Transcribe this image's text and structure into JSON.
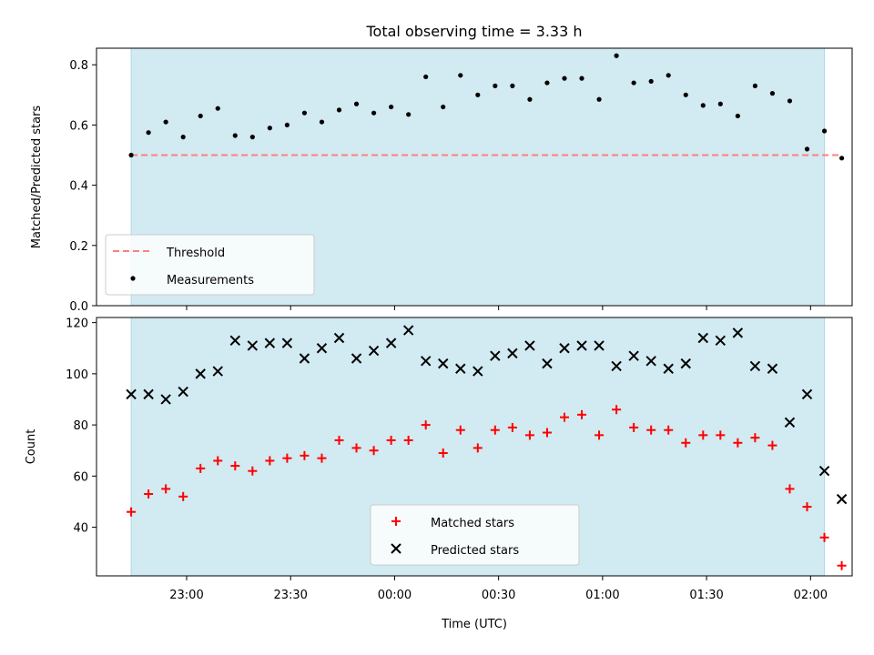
{
  "chart_data": [
    {
      "type": "scatter",
      "title": "Total observing time = 3.33 h",
      "ylabel": "Matched/Predicted stars",
      "xlabel": "",
      "ylim": [
        0,
        0.855
      ],
      "yticks": [
        "0.0",
        "0.2",
        "0.4",
        "0.6",
        "0.8"
      ],
      "threshold": {
        "name": "Threshold",
        "value": 0.5,
        "color": "#ff7f7f",
        "x_range": [
          "22:44",
          "02:09"
        ]
      },
      "observing_window": {
        "start": "22:44",
        "end": "02:04",
        "color": "#add8e6"
      },
      "legend_location": "lower-left",
      "series": [
        {
          "name": "Measurements",
          "color": "#000000",
          "marker": "dot",
          "x": [
            "22:44",
            "22:49",
            "22:54",
            "22:59",
            "23:04",
            "23:09",
            "23:14",
            "23:19",
            "23:24",
            "23:29",
            "23:34",
            "23:39",
            "23:44",
            "23:49",
            "23:54",
            "23:59",
            "00:04",
            "00:09",
            "00:14",
            "00:19",
            "00:24",
            "00:29",
            "00:34",
            "00:39",
            "00:44",
            "00:49",
            "00:54",
            "00:59",
            "01:04",
            "01:09",
            "01:14",
            "01:19",
            "01:24",
            "01:29",
            "01:34",
            "01:39",
            "01:44",
            "01:49",
            "01:54",
            "01:59",
            "02:04",
            "02:09"
          ],
          "y": [
            0.5,
            0.575,
            0.61,
            0.56,
            0.63,
            0.655,
            0.565,
            0.56,
            0.59,
            0.6,
            0.64,
            0.61,
            0.65,
            0.67,
            0.64,
            0.66,
            0.635,
            0.76,
            0.66,
            0.765,
            0.7,
            0.73,
            0.73,
            0.685,
            0.74,
            0.755,
            0.755,
            0.685,
            0.83,
            0.74,
            0.745,
            0.765,
            0.7,
            0.665,
            0.67,
            0.63,
            0.73,
            0.705,
            0.68,
            0.52,
            0.58,
            0.49
          ]
        }
      ]
    },
    {
      "type": "scatter",
      "title": "",
      "ylabel": "Count",
      "xlabel": "Time (UTC)",
      "ylim": [
        21,
        122
      ],
      "yticks": [
        "40",
        "60",
        "80",
        "100",
        "120"
      ],
      "xlim": [
        "22:34",
        "02:12"
      ],
      "xticks": [
        "23:00",
        "23:30",
        "00:00",
        "00:30",
        "01:00",
        "01:30",
        "02:00"
      ],
      "observing_window": {
        "start": "22:44",
        "end": "02:04",
        "color": "#add8e6"
      },
      "legend_location": "bottom-center",
      "series": [
        {
          "name": "Matched stars",
          "color": "#ff0000",
          "marker": "plus",
          "x": [
            "22:44",
            "22:49",
            "22:54",
            "22:59",
            "23:04",
            "23:09",
            "23:14",
            "23:19",
            "23:24",
            "23:29",
            "23:34",
            "23:39",
            "23:44",
            "23:49",
            "23:54",
            "23:59",
            "00:04",
            "00:09",
            "00:14",
            "00:19",
            "00:24",
            "00:29",
            "00:34",
            "00:39",
            "00:44",
            "00:49",
            "00:54",
            "00:59",
            "01:04",
            "01:09",
            "01:14",
            "01:19",
            "01:24",
            "01:29",
            "01:34",
            "01:39",
            "01:44",
            "01:49",
            "01:54",
            "01:59",
            "02:04",
            "02:09"
          ],
          "y": [
            46,
            53,
            55,
            52,
            63,
            66,
            64,
            62,
            66,
            67,
            68,
            67,
            74,
            71,
            70,
            74,
            74,
            80,
            69,
            78,
            71,
            78,
            79,
            76,
            77,
            83,
            84,
            76,
            86,
            79,
            78,
            78,
            73,
            76,
            76,
            73,
            75,
            72,
            55,
            48,
            36,
            25
          ]
        },
        {
          "name": "Predicted stars",
          "color": "#000000",
          "marker": "x",
          "x": [
            "22:44",
            "22:49",
            "22:54",
            "22:59",
            "23:04",
            "23:09",
            "23:14",
            "23:19",
            "23:24",
            "23:29",
            "23:34",
            "23:39",
            "23:44",
            "23:49",
            "23:54",
            "23:59",
            "00:04",
            "00:09",
            "00:14",
            "00:19",
            "00:24",
            "00:29",
            "00:34",
            "00:39",
            "00:44",
            "00:49",
            "00:54",
            "00:59",
            "01:04",
            "01:09",
            "01:14",
            "01:19",
            "01:24",
            "01:29",
            "01:34",
            "01:39",
            "01:44",
            "01:49",
            "01:54",
            "01:59",
            "02:04",
            "02:09"
          ],
          "y": [
            92,
            92,
            90,
            93,
            100,
            101,
            113,
            111,
            112,
            112,
            106,
            110,
            114,
            106,
            109,
            112,
            117,
            105,
            104,
            102,
            101,
            107,
            108,
            111,
            104,
            110,
            111,
            111,
            103,
            107,
            105,
            102,
            104,
            114,
            113,
            116,
            103,
            102,
            81,
            92,
            62,
            51
          ]
        }
      ]
    }
  ]
}
